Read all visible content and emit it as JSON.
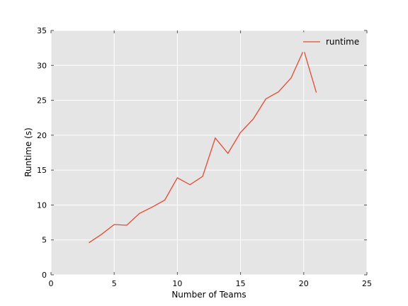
{
  "chart_data": {
    "type": "line",
    "title": "",
    "xlabel": "Number of Teams",
    "ylabel": "Runtime (s)",
    "xlim": [
      0,
      25
    ],
    "ylim": [
      0,
      35
    ],
    "x_ticks": [
      0,
      5,
      10,
      15,
      20,
      25
    ],
    "y_ticks": [
      0,
      5,
      10,
      15,
      20,
      25,
      30,
      35
    ],
    "grid": true,
    "legend_position": "top-right",
    "series": [
      {
        "name": "runtime",
        "color": "#e24a33",
        "x": [
          3,
          4,
          5,
          6,
          7,
          8,
          9,
          10,
          11,
          12,
          13,
          14,
          15,
          16,
          17,
          18,
          19,
          20,
          21
        ],
        "y": [
          4.6,
          5.8,
          7.2,
          7.1,
          8.8,
          9.7,
          10.7,
          13.9,
          12.9,
          14.1,
          19.6,
          17.4,
          20.4,
          22.3,
          25.2,
          26.2,
          28.2,
          32.2,
          26.1
        ]
      }
    ]
  },
  "colors": {
    "plot_background": "#e5e5e5",
    "grid": "#ffffff"
  }
}
